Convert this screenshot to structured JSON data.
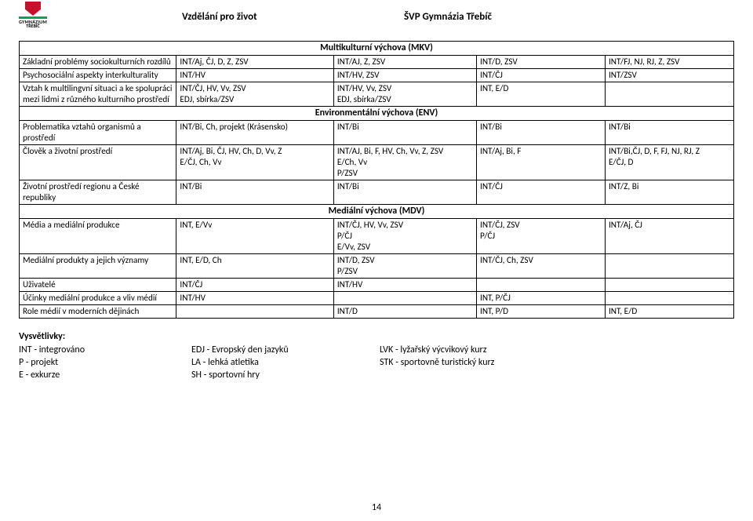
{
  "header": {
    "logo_line1": "GYMNÁZIUM",
    "logo_line2": "TŘEBÍČ",
    "title_left": "Vzdělání pro život",
    "title_right": "ŠVP Gymnázia Třebíč"
  },
  "sections": [
    {
      "title": "Multikulturní výchova (MKV)",
      "rows": [
        {
          "c0": "Základní problémy sociokulturních rozdílů",
          "c1": "INT/Aj, ČJ, D, Z, ZSV",
          "c2": "INT/AJ, Z, ZSV",
          "c3": "INT/D, ZSV",
          "c4": "INT/FJ, NJ, RJ, Z, ZSV"
        },
        {
          "c0": "Psychosociální aspekty interkulturality",
          "c1": "INT/HV",
          "c2": "INT/HV, ZSV",
          "c3": "INT/ČJ",
          "c4": "INT/ZSV"
        },
        {
          "c0": "Vztah k multilingvní situaci a ke spolupráci mezi lidmi z různého kulturního prostředí",
          "c1": "INT/ČJ, HV, Vv, ZSV\nEDJ, sbírka/ZSV",
          "c2": "INT/HV, Vv, ZSV\nEDJ, sbírka/ZSV",
          "c3": "INT, E/D",
          "c4": ""
        }
      ]
    },
    {
      "title": "Environmentální výchova (ENV)",
      "rows": [
        {
          "c0": "Problematika vztahů organismů a prostředí",
          "c1": "INT/Bi, Ch, projekt (Krásensko)",
          "c2": "INT/Bi",
          "c3": "INT/Bi",
          "c4": "INT/Bi"
        },
        {
          "c0": "Člověk a životní prostředí",
          "c1": "INT/Aj, Bi, ČJ, HV, Ch, D, Vv, Z\nE/ČJ, Ch, Vv",
          "c2": "INT/AJ, Bi, F, HV, Ch, Vv, Z, ZSV\nE/Ch, Vv\nP/ZSV",
          "c3": "INT/Aj, Bi, F",
          "c4": "INT/Bi,ČJ, D, F, FJ, NJ, RJ, Z\nE/ČJ, D"
        },
        {
          "c0": "Životní prostředí regionu a České republiky",
          "c1": "INT/Bi",
          "c2": "INT/Bi",
          "c3": "INT/ČJ",
          "c4": "INT/Z, Bi"
        }
      ]
    },
    {
      "title": "Mediální výchova (MDV)",
      "rows": [
        {
          "c0": "Média a mediální produkce",
          "c1": "INT, E/Vv",
          "c2": "INT/ČJ, HV, Vv, ZSV\nP/ČJ\nE/Vv, ZSV",
          "c3": "INT/ČJ, ZSV\nP/ČJ",
          "c4": "INT/Aj, ČJ"
        },
        {
          "c0": "Mediální produkty a jejich významy",
          "c1": "INT, E/D, Ch",
          "c2": "INT/D, ZSV\nP/ZSV",
          "c3": "INT/ČJ, Ch, ZSV",
          "c4": ""
        },
        {
          "c0": "Uživatelé",
          "c1": "INT/ČJ",
          "c2": "INT/HV",
          "c3": "",
          "c4": ""
        },
        {
          "c0": "Účinky mediální produkce a vliv médií",
          "c1": "INT/HV",
          "c2": "",
          "c3": "INT, P/ČJ",
          "c4": ""
        },
        {
          "c0": "Role médií v moderních dějinách",
          "c1": "",
          "c2": "INT/D",
          "c3": "INT, P/D",
          "c4": "INT, E/D"
        }
      ]
    }
  ],
  "legend": {
    "title": "Vysvětlivky:",
    "cols": [
      [
        {
          "abbr": "INT",
          "def": "integrováno"
        },
        {
          "abbr": "P",
          "def": "projekt"
        },
        {
          "abbr": "E",
          "def": "exkurze"
        }
      ],
      [
        {
          "abbr": "EDJ",
          "def": "Evropský den jazyků"
        },
        {
          "abbr": "LA",
          "def": "lehká atletika"
        },
        {
          "abbr": "SH",
          "def": "sportovní hry"
        }
      ],
      [
        {
          "abbr": "LVK",
          "def": "lyžařský výcvikový kurz"
        },
        {
          "abbr": "STK",
          "def": "sportovně turistický kurz"
        }
      ]
    ]
  },
  "page_number": "14"
}
